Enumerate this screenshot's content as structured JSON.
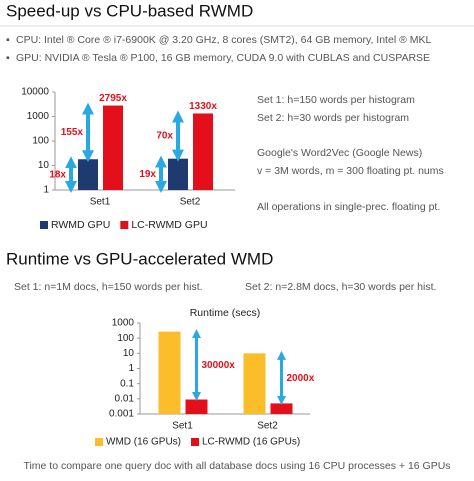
{
  "sections": [
    {
      "title": "Speed-up vs CPU-based RWMD",
      "bullets": [
        "CPU: Intel ® Core ®  i7-6900K  @ 3.20 GHz, 8 cores (SMT2), 64 GB memory, Intel ® MKL",
        "GPU: NVIDIA ® Tesla ® P100, 16 GB memory, CUDA 9.0 with CUBLAS and CUSPARSE"
      ],
      "notes": [
        "Set 1: h=150 words per histogram",
        "Set 2: h=30 words per histogram",
        "Google's Word2Vec (Google News)",
        "v = 3M words, m = 300 floating pt. nums",
        "All operations in single-prec. floating pt."
      ]
    },
    {
      "title": "Runtime vs GPU-accelerated WMD",
      "notes": [
        "Set 1: n=1M docs, h=150 words per hist.",
        "Set 2: n=2.8M docs, h=30 words per hist."
      ],
      "footer": "Time to compare one query doc with all database docs using 16 CPU processes + 16 GPUs"
    }
  ],
  "chart_data": [
    {
      "type": "bar",
      "log_scale": true,
      "categories": [
        "Set1",
        "Set2"
      ],
      "series": [
        {
          "name": "RWMD GPU",
          "color": "#1f3a6e",
          "values": [
            18,
            19
          ],
          "value_labels": [
            "18x",
            "19x"
          ]
        },
        {
          "name": "LC-RWMD GPU",
          "color": "#e3101c",
          "values": [
            2795,
            1330
          ],
          "value_labels": [
            "2795x",
            "1330x"
          ]
        }
      ],
      "annotations": [
        "155x",
        "70x"
      ],
      "ylim": [
        1,
        10000
      ],
      "yticks": [
        1,
        10,
        100,
        1000,
        10000
      ]
    },
    {
      "type": "bar",
      "log_scale": true,
      "title": "Runtime (secs)",
      "categories": [
        "Set1",
        "Set2"
      ],
      "series": [
        {
          "name": "WMD (16 GPUs)",
          "color": "#fbbd2a",
          "values": [
            270,
            10
          ]
        },
        {
          "name": "LC-RWMD (16 GPUs)",
          "color": "#e3101c",
          "values": [
            0.009,
            0.005
          ]
        }
      ],
      "annotations": [
        "30000x",
        "2000x"
      ],
      "ylim": [
        0.001,
        1000
      ],
      "yticks": [
        0.001,
        0.01,
        0.1,
        1,
        10,
        100,
        1000
      ]
    }
  ]
}
